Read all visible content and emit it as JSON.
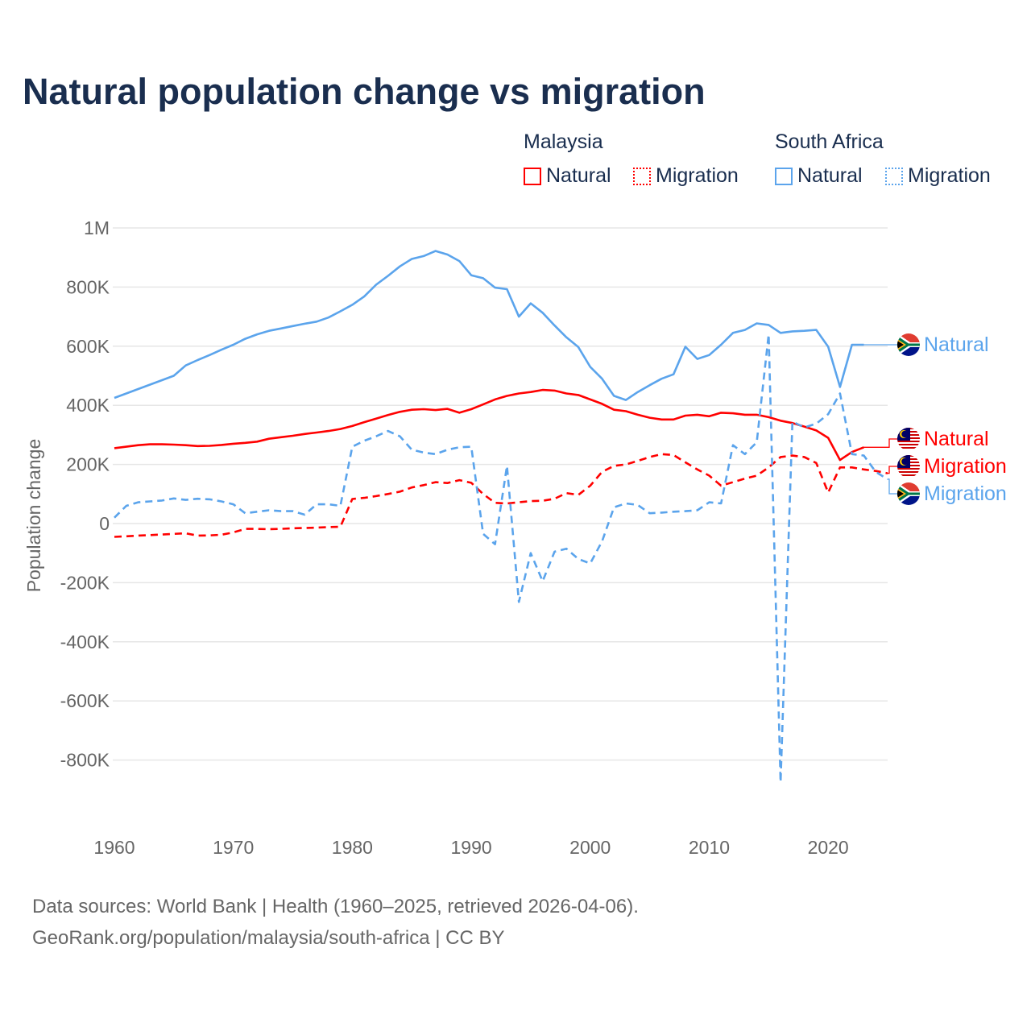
{
  "title": "Natural population change vs migration",
  "legend": {
    "groups": [
      {
        "name": "Malaysia",
        "items": [
          {
            "label": "Natural",
            "style": "solid"
          },
          {
            "label": "Migration",
            "style": "dotted"
          }
        ]
      },
      {
        "name": "South Africa",
        "items": [
          {
            "label": "Natural",
            "style": "solid"
          },
          {
            "label": "Migration",
            "style": "dotted"
          }
        ]
      }
    ]
  },
  "footer": {
    "line1": "Data sources: World Bank | Health (1960–2025, retrieved 2026-04-06).",
    "line2": "GeoRank.org/population/malaysia/south-africa | CC BY"
  },
  "chart_data": {
    "type": "line",
    "title": "Natural population change vs migration",
    "ylabel": "Population change",
    "xlabel": "",
    "xlim": [
      1960,
      2025
    ],
    "ylim": [
      -1000000,
      1000000
    ],
    "x_ticks": [
      1960,
      1970,
      1980,
      1990,
      2000,
      2010,
      2020
    ],
    "x_tick_labels": [
      "1960",
      "1970",
      "1980",
      "1990",
      "2000",
      "2010",
      "2020"
    ],
    "y_ticks": [
      1000000,
      800000,
      600000,
      400000,
      200000,
      0,
      -200000,
      -400000,
      -600000,
      -800000
    ],
    "y_tick_labels": [
      "1M",
      "800K",
      "600K",
      "400K",
      "200K",
      "0",
      "-200K",
      "-400K",
      "-600K",
      "-800K"
    ],
    "grid": true,
    "legend_placement": "top-right",
    "x_start": 1960,
    "series": [
      {
        "name": "South Africa Natural",
        "label": "Natural",
        "color": "#5ba4ec",
        "dash": false,
        "values": [
          425000,
          440000,
          455000,
          470000,
          485000,
          500000,
          535000,
          553000,
          570000,
          588000,
          605000,
          625000,
          640000,
          652000,
          660000,
          668000,
          676000,
          683000,
          697000,
          718000,
          740000,
          768000,
          808000,
          838000,
          870000,
          895000,
          905000,
          922000,
          910000,
          888000,
          840000,
          830000,
          798000,
          793000,
          700000,
          745000,
          713000,
          670000,
          630000,
          597000,
          530000,
          490000,
          432000,
          418000,
          445000,
          468000,
          490000,
          505000,
          598000,
          557000,
          570000,
          605000,
          645000,
          655000,
          677000,
          672000,
          645000,
          650000,
          652000,
          655000,
          598000,
          462000,
          605000,
          605000
        ]
      },
      {
        "name": "Malaysia Natural",
        "label": "Natural",
        "color": "#ff0000",
        "dash": false,
        "values": [
          255000,
          260000,
          265000,
          268000,
          268000,
          267000,
          265000,
          262000,
          263000,
          266000,
          270000,
          273000,
          277000,
          287000,
          292000,
          297000,
          303000,
          308000,
          313000,
          320000,
          330000,
          343000,
          355000,
          367000,
          378000,
          385000,
          387000,
          384000,
          388000,
          375000,
          387000,
          403000,
          420000,
          432000,
          440000,
          445000,
          452000,
          450000,
          440000,
          435000,
          420000,
          405000,
          385000,
          380000,
          368000,
          358000,
          352000,
          352000,
          365000,
          368000,
          363000,
          375000,
          373000,
          368000,
          368000,
          360000,
          348000,
          340000,
          328000,
          315000,
          290000,
          215000,
          242000,
          258000
        ]
      },
      {
        "name": "Malaysia Migration",
        "label": "Migration",
        "color": "#ff0000",
        "dash": true,
        "values": [
          -45000,
          -43000,
          -41000,
          -39000,
          -37000,
          -35000,
          -33000,
          -41000,
          -40000,
          -38000,
          -30000,
          -18000,
          -18000,
          -19000,
          -18000,
          -16000,
          -15000,
          -14000,
          -12000,
          -11000,
          83000,
          87000,
          93000,
          100000,
          108000,
          122000,
          130000,
          140000,
          137000,
          147000,
          138000,
          100000,
          70000,
          68000,
          72000,
          76000,
          77000,
          84000,
          103000,
          97000,
          128000,
          175000,
          195000,
          200000,
          212000,
          225000,
          235000,
          232000,
          207000,
          183000,
          162000,
          128000,
          140000,
          152000,
          162000,
          190000,
          225000,
          230000,
          225000,
          205000,
          105000,
          190000,
          190000,
          183000,
          178000,
          170000
        ]
      },
      {
        "name": "South Africa Migration",
        "label": "Migration",
        "color": "#5ba4ec",
        "dash": true,
        "values": [
          20000,
          60000,
          72000,
          75000,
          78000,
          85000,
          80000,
          84000,
          82000,
          75000,
          65000,
          35000,
          40000,
          45000,
          42000,
          42000,
          30000,
          65000,
          65000,
          60000,
          260000,
          280000,
          295000,
          313000,
          295000,
          250000,
          240000,
          235000,
          250000,
          258000,
          260000,
          -35000,
          -70000,
          195000,
          -265000,
          -100000,
          -195000,
          -95000,
          -85000,
          -120000,
          -135000,
          -60000,
          55000,
          68000,
          63000,
          35000,
          37000,
          40000,
          42000,
          45000,
          72000,
          68000,
          265000,
          235000,
          275000,
          640000,
          -875000,
          345000,
          325000,
          338000,
          370000,
          440000,
          235000,
          230000,
          175000,
          150000
        ]
      }
    ]
  }
}
